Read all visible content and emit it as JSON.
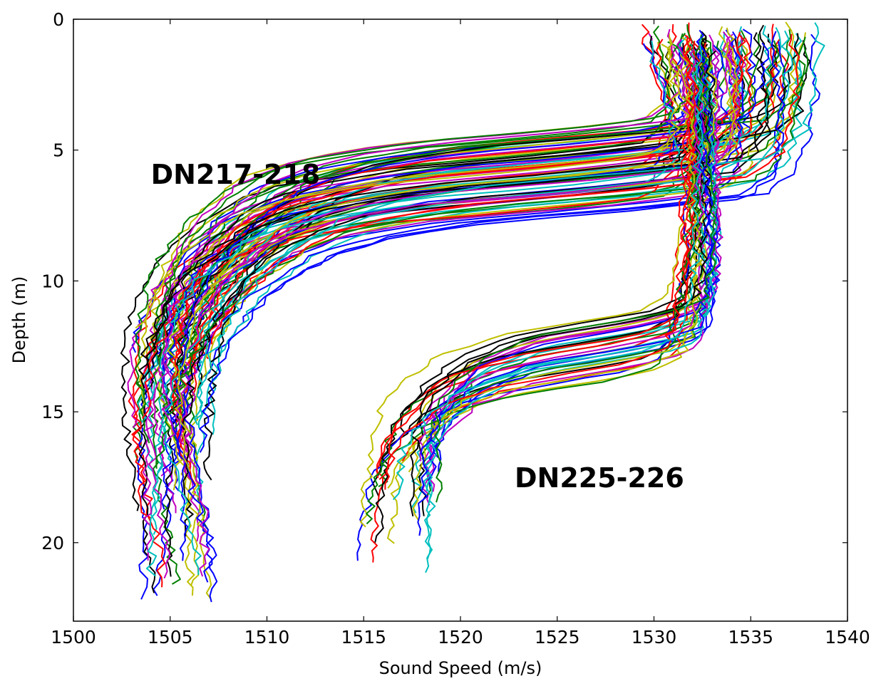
{
  "chart_data": {
    "type": "line",
    "title": "",
    "xlabel": "Sound Speed (m/s)",
    "ylabel": "Depth (m)",
    "xlim": [
      1500,
      1540
    ],
    "ylim": [
      23,
      0
    ],
    "y_inverted": true,
    "xticks": [
      1500,
      1505,
      1510,
      1515,
      1520,
      1525,
      1530,
      1535,
      1540
    ],
    "yticks": [
      0,
      5,
      10,
      15,
      20
    ],
    "grid": false,
    "legend": "none",
    "colors": [
      "#0000ff",
      "#008000",
      "#ff0000",
      "#00bfbf",
      "#bf00bf",
      "#bfbf00",
      "#000000"
    ],
    "annotations": [
      {
        "text": "DN217-218",
        "x": 1504,
        "y": 5.9
      },
      {
        "text": "DN225-226",
        "x": 1522.8,
        "y": 17.5
      }
    ],
    "groups": [
      {
        "label": "DN217-218",
        "profile_count": 84,
        "typical_profile": [
          [
            1536.0,
            0.5
          ],
          [
            1536.2,
            1.0
          ],
          [
            1536.0,
            3.0
          ],
          [
            1535.6,
            4.4
          ],
          [
            1534.0,
            5.3
          ],
          [
            1528.0,
            5.8
          ],
          [
            1520.0,
            6.3
          ],
          [
            1515.0,
            6.9
          ],
          [
            1512.0,
            7.6
          ],
          [
            1510.5,
            8.3
          ],
          [
            1509.0,
            9.0
          ],
          [
            1507.8,
            9.9
          ],
          [
            1506.8,
            10.8
          ],
          [
            1506.0,
            11.8
          ],
          [
            1505.4,
            12.8
          ],
          [
            1505.0,
            13.8
          ],
          [
            1504.7,
            15.0
          ],
          [
            1504.5,
            16.5
          ],
          [
            1504.4,
            18.5
          ],
          [
            1504.3,
            20.3
          ]
        ],
        "depth_range_m": [
          0.3,
          22.8
        ],
        "surface_speed_range_ms": [
          1528.8,
          1538.8
        ],
        "bottom_speed_range_ms": [
          1503.6,
          1509.5
        ]
      },
      {
        "label": "DN225-226",
        "profile_count": 36,
        "typical_profile": [
          [
            1532.4,
            0.8
          ],
          [
            1532.5,
            2.0
          ],
          [
            1532.3,
            4.0
          ],
          [
            1532.0,
            6.0
          ],
          [
            1531.9,
            8.0
          ],
          [
            1531.6,
            9.5
          ],
          [
            1531.3,
            10.8
          ],
          [
            1530.8,
            11.8
          ],
          [
            1529.0,
            12.3
          ],
          [
            1526.0,
            12.7
          ],
          [
            1522.0,
            13.2
          ],
          [
            1519.0,
            14.0
          ],
          [
            1517.5,
            14.9
          ],
          [
            1516.5,
            15.7
          ],
          [
            1516.0,
            16.6
          ],
          [
            1515.8,
            17.6
          ],
          [
            1515.6,
            18.8
          ],
          [
            1515.5,
            20.0
          ]
        ],
        "depth_range_m": [
          0.6,
          21.3
        ],
        "surface_speed_range_ms": [
          1531.0,
          1533.0
        ],
        "bottom_speed_range_ms": [
          1514.8,
          1520.2
        ]
      }
    ]
  }
}
